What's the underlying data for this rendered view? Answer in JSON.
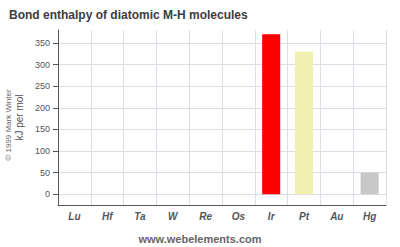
{
  "chart_data": {
    "type": "bar",
    "title": "Bond enthalpy of diatomic M-H molecules",
    "ylabel": "kJ per mol",
    "categories": [
      "Lu",
      "Hf",
      "Ta",
      "W",
      "Re",
      "Os",
      "Ir",
      "Pt",
      "Au",
      "Hg"
    ],
    "values": [
      0,
      0,
      0,
      0,
      0,
      0,
      370,
      330,
      0,
      50
    ],
    "colors": [
      "red",
      "red",
      "red",
      "red",
      "red",
      "red",
      "red",
      "#f0f0b0",
      "red",
      "#c8c8c8"
    ],
    "ylim": [
      -25,
      380
    ],
    "yticks": [
      0,
      50,
      100,
      150,
      200,
      250,
      300,
      350
    ],
    "grid": true,
    "annotations": [
      "www.webelements.com",
      "© 1999 Mark Winter"
    ]
  }
}
